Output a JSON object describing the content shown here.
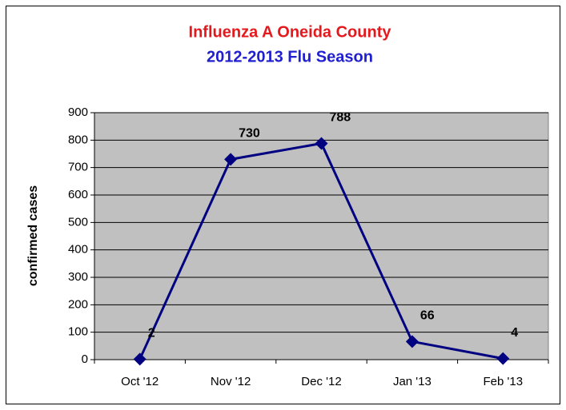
{
  "chart_data": {
    "type": "line",
    "title": "Influenza A Oneida County",
    "title_color": "#e3191e",
    "subtitle": "2012-2013 Flu Season",
    "subtitle_color": "#1f1fd0",
    "y_label": "confirmed cases",
    "categories": [
      "Oct '12",
      "Nov '12",
      "Dec '12",
      "Jan '13",
      "Feb '13"
    ],
    "values": [
      2,
      730,
      788,
      66,
      4
    ],
    "color": "#000080",
    "ylim": [
      0,
      900
    ],
    "yticks": [
      0,
      100,
      200,
      300,
      400,
      500,
      600,
      700,
      800,
      900
    ],
    "grid": true
  }
}
